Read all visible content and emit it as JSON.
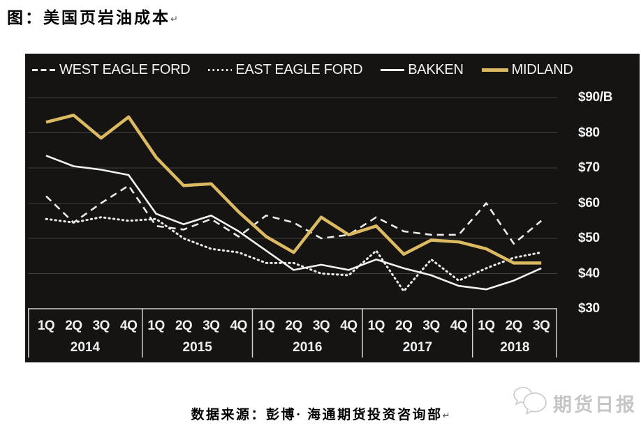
{
  "title": {
    "text": "图：美国页岩油成本",
    "paragraph_mark": "↵"
  },
  "source": {
    "text": "数据来源：彭博· 海通期货投资咨询部",
    "paragraph_mark": "↵"
  },
  "watermark": {
    "label": "期货日报"
  },
  "chart_data": {
    "type": "line",
    "legend_position": "top",
    "grid": true,
    "colors": {
      "background": "#151413",
      "gridline": "#3f3f3f",
      "axis": "#cfcfcf",
      "text": "#f0f0f0",
      "midland_gold": "#dcba62"
    },
    "y_axis": {
      "unit": "$/B",
      "min": 30,
      "max": 90,
      "tick_labels": [
        "$90/B",
        "$80",
        "$70",
        "$60",
        "$50",
        "$40",
        "$30"
      ],
      "tick_values": [
        90,
        80,
        70,
        60,
        50,
        40,
        30
      ]
    },
    "x_axis": {
      "groups": [
        {
          "year": "2014",
          "quarters": [
            "1Q",
            "2Q",
            "3Q",
            "4Q"
          ]
        },
        {
          "year": "2015",
          "quarters": [
            "1Q",
            "2Q",
            "3Q",
            "4Q"
          ]
        },
        {
          "year": "2016",
          "quarters": [
            "1Q",
            "2Q",
            "3Q",
            "4Q"
          ]
        },
        {
          "year": "2017",
          "quarters": [
            "1Q",
            "2Q",
            "3Q",
            "4Q"
          ]
        },
        {
          "year": "2018",
          "quarters": [
            "1Q",
            "2Q",
            "3Q"
          ]
        }
      ]
    },
    "series": [
      {
        "name": "WEST EAGLE FORD",
        "style": "dashed",
        "color": "#ebebeb",
        "values": [
          62,
          54.5,
          60,
          65,
          53.5,
          52.5,
          55.5,
          50.5,
          56.5,
          54.5,
          50,
          51,
          56,
          52,
          51,
          51,
          60,
          48.5,
          55
        ]
      },
      {
        "name": "EAST EAGLE FORD",
        "style": "dotted",
        "color": "#ebebeb",
        "values": [
          55.5,
          54.5,
          56,
          55,
          55.5,
          50,
          47,
          46,
          43,
          43,
          40,
          39.5,
          46.5,
          35,
          44,
          38,
          41.5,
          44.5,
          46
        ]
      },
      {
        "name": "BAKKEN",
        "style": "solid",
        "color": "#f2f2f2",
        "values": [
          73.5,
          70.5,
          69.5,
          68,
          57,
          54,
          56.5,
          52,
          46.5,
          41,
          42.5,
          41,
          44,
          41.5,
          39.5,
          36.5,
          35.5,
          38,
          41.5
        ]
      },
      {
        "name": "MIDLAND",
        "style": "solid-thick",
        "color": "#dcba62",
        "values": [
          83,
          85,
          78.5,
          84.5,
          73,
          65,
          65.5,
          57.5,
          50.5,
          46,
          56,
          51,
          53.5,
          45.5,
          49.5,
          49,
          47,
          43,
          43
        ]
      }
    ]
  }
}
